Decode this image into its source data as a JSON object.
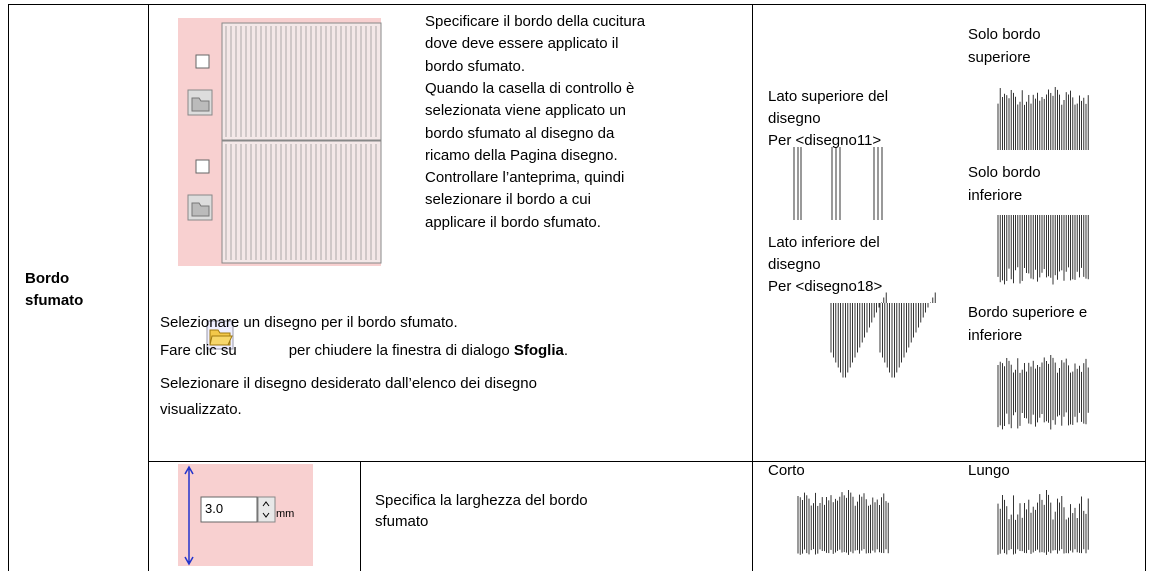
{
  "table": {
    "row_header": "Bordo sfumato",
    "rows": [
      {
        "description_lines": [
          "Specificare il bordo della cucitura",
          "dove deve essere applicato il",
          "bordo sfumato.",
          "Quando la casella di controllo è",
          "selezionata viene applicato un",
          "bordo sfumato al disegno da",
          "ricamo della Pagina disegno.",
          "Controllare l’anteprima, quindi",
          "selezionare il bordo a cui",
          "applicare il bordo sfumato."
        ],
        "instructions": {
          "line1": "Selezionare un disegno per il bordo sfumato.",
          "line2_before": "Fare clic su",
          "line2_after": "per chiudere la finestra di dialogo",
          "line2_bold": "Sfoglia",
          "line2_end": ".",
          "line3": "Selezionare il disegno desiderato dall’elenco dei disegno",
          "line4": "visualizzato."
        },
        "examples_left": [
          {
            "lines": [
              "Lato superiore del",
              "disegno",
              "Per <disegno11>"
            ]
          },
          {
            "lines": [
              "Lato inferiore del",
              "disegno",
              "Per <disegno18>"
            ]
          }
        ],
        "examples_right": [
          {
            "lines": [
              "Solo bordo",
              "superiore"
            ]
          },
          {
            "lines": [
              "Solo bordo",
              "inferiore"
            ]
          },
          {
            "lines": [
              "Bordo superiore e",
              "inferiore"
            ]
          }
        ]
      },
      {
        "control_value": "3.0",
        "control_unit": "mm",
        "description_lines": [
          "Specifica la larghezza del bordo",
          "sfumato"
        ],
        "examples": [
          "Corto",
          "Lungo"
        ]
      }
    ]
  }
}
